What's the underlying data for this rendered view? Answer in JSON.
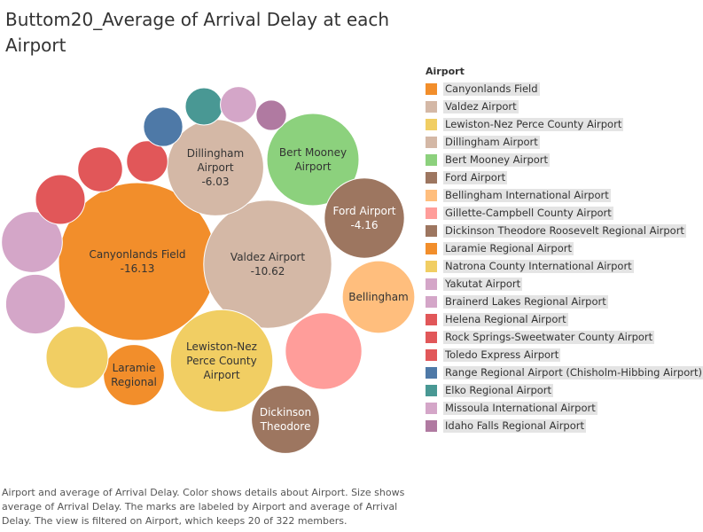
{
  "title": "Buttom20_Average of Arrival Delay at each Airport",
  "legend_title": "Airport",
  "caption": "Airport and average of Arrival Delay.  Color shows details about Airport.  Size shows average of Arrival Delay.  The marks are labeled by Airport and average of Arrival Delay. The view is filtered on Airport, which keeps 20 of 322 members.",
  "chart_data": {
    "type": "bubble",
    "title": "Buttom20_Average of Arrival Delay at each Airport",
    "legend_placement": "right",
    "series": [
      {
        "name": "Canyonlands Field",
        "label": [
          "Canyonlands Field",
          "-16.13"
        ],
        "value": -16.13,
        "color": "#f28e2b"
      },
      {
        "name": "Valdez Airport",
        "label": [
          "Valdez Airport",
          "-10.62"
        ],
        "value": -10.62,
        "color": "#d4b8a6"
      },
      {
        "name": "Lewiston-Nez Perce County Airport",
        "label": [
          "Lewiston-Nez",
          "Perce County",
          "Airport"
        ],
        "value": -6.8,
        "color": "#f1ce63"
      },
      {
        "name": "Dillingham Airport",
        "label": [
          "Dillingham",
          "Airport",
          "-6.03"
        ],
        "value": -6.03,
        "color": "#d4b8a6"
      },
      {
        "name": "Bert Mooney Airport",
        "label": [
          "Bert Mooney",
          "Airport"
        ],
        "value": -5.5,
        "color": "#8cd17d"
      },
      {
        "name": "Ford Airport",
        "label": [
          "Ford Airport",
          "-4.16"
        ],
        "value": -4.16,
        "color": "#9d7660"
      },
      {
        "name": "Bellingham International Airport",
        "label": [
          "Bellingham"
        ],
        "value": -3.4,
        "color": "#ffbe7d"
      },
      {
        "name": "Gillette-Campbell County Airport",
        "label": [],
        "value": -3.8,
        "color": "#ff9d9a"
      },
      {
        "name": "Dickinson Theodore Roosevelt Regional Airport",
        "label": [
          "Dickinson",
          "Theodore"
        ],
        "value": -3.0,
        "color": "#9d7660"
      },
      {
        "name": "Laramie Regional Airport",
        "label": [
          "Laramie",
          "Regional"
        ],
        "value": -2.4,
        "color": "#f28e2b"
      },
      {
        "name": "Natrona County International Airport",
        "label": [],
        "value": -2.5,
        "color": "#f1ce63"
      },
      {
        "name": "Yakutat Airport",
        "label": [],
        "value": -2.4,
        "color": "#d4a6c8"
      },
      {
        "name": "Brainerd Lakes Regional Airport",
        "label": [],
        "value": -2.3,
        "color": "#d4a6c8"
      },
      {
        "name": "Helena Regional Airport",
        "label": [],
        "value": -1.6,
        "color": "#e15759"
      },
      {
        "name": "Rock Springs-Sweetwater County Airport",
        "label": [],
        "value": -1.3,
        "color": "#e15759"
      },
      {
        "name": "Toledo Express Airport",
        "label": [],
        "value": -1.1,
        "color": "#e15759"
      },
      {
        "name": "Range Regional Airport (Chisholm-Hibbing Airport)",
        "label": [],
        "value": -1.0,
        "color": "#4e79a7"
      },
      {
        "name": "Elko Regional Airport",
        "label": [],
        "value": -0.9,
        "color": "#499894"
      },
      {
        "name": "Missoula International Airport",
        "label": [],
        "value": -0.85,
        "color": "#d4a6c8"
      },
      {
        "name": "Idaho Falls Regional Airport",
        "label": [],
        "value": -0.6,
        "color": "#b07aa1"
      }
    ]
  }
}
